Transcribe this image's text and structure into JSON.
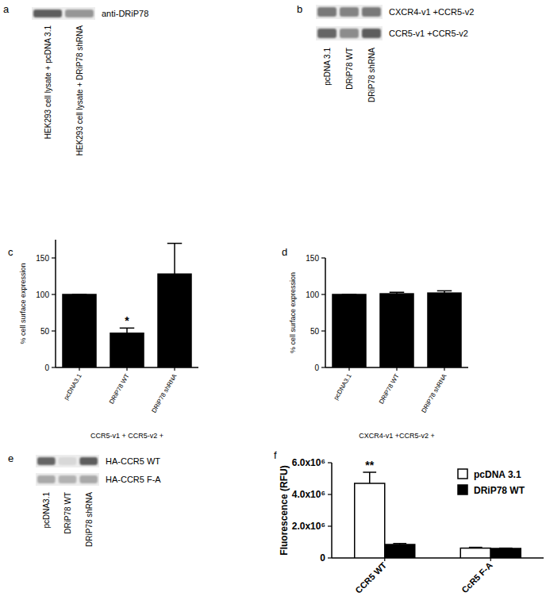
{
  "chart_data": [
    {
      "type": "bar",
      "panel": "c",
      "y_label": "% cell surface expression",
      "x_label": "CCR5-v1 + CCR5-v2 +",
      "categories": [
        "pcDNA3.1",
        "DRiP78 WT",
        "DRiP78 shRNA"
      ],
      "values": [
        100,
        47,
        128
      ],
      "errors": [
        0,
        7,
        42
      ],
      "color": "#000000",
      "ylim": [
        0,
        175
      ],
      "yticks": [
        0,
        50,
        100,
        150
      ],
      "grid": false,
      "annotations": [
        {
          "text": "*",
          "category": "DRiP78 WT"
        }
      ]
    },
    {
      "type": "bar",
      "panel": "d",
      "y_label": "% cell surface expression",
      "x_label": "CXCR4-v1 +CCR5-v2 +",
      "categories": [
        "pcDNA3.1",
        "DRiP78 WT",
        "DRiP78 shRNA"
      ],
      "values": [
        100,
        101,
        102
      ],
      "errors": [
        0,
        2,
        3
      ],
      "color": "#000000",
      "ylim": [
        0,
        150
      ],
      "yticks": [
        0,
        50,
        100,
        150
      ],
      "grid": false
    },
    {
      "type": "bar",
      "panel": "f",
      "y_label": "Fluorescence (RFU)",
      "categories": [
        "CCR5 WT",
        "CcR5 F-A"
      ],
      "series": [
        {
          "name": "pcDNA 3.1",
          "color": "#ffffff",
          "values": [
            4700000,
            620000
          ],
          "errors": [
            700000,
            50000
          ]
        },
        {
          "name": "DRiP78 WT",
          "color": "#000000",
          "values": [
            850000,
            600000
          ],
          "errors": [
            60000,
            20000
          ]
        }
      ],
      "ylim": [
        0,
        6000000
      ],
      "yticks": [
        0,
        {
          "value": 2000000,
          "label": "2.0x10⁶"
        },
        {
          "value": 4000000,
          "label": "4.0x10⁶"
        },
        {
          "value": 6000000,
          "label": "6.0x10⁶"
        }
      ],
      "grid": false,
      "legend": "upper right",
      "annotations": [
        {
          "text": "**",
          "category": "CCR5 WT"
        }
      ]
    }
  ],
  "blots": [
    {
      "panel": "a",
      "lanes": [
        "HEK293 cell lysate + pcDNA 3.1",
        "HEK293 cell lysate + DRiP78 shRNA"
      ],
      "rows": [
        {
          "label": "anti-DRiP78",
          "intensities": [
            0.75,
            0.45
          ]
        }
      ]
    },
    {
      "panel": "b",
      "lanes": [
        "pcDNA 3.1",
        "DRiP78 WT",
        "DRiP78 shRNA"
      ],
      "rows": [
        {
          "label": "CXCR4-v1 +CCR5-v2",
          "intensities": [
            0.6,
            0.55,
            0.6
          ]
        },
        {
          "label": "CCR5-v1 +CCR5-v2",
          "intensities": [
            0.7,
            0.5,
            0.75
          ]
        }
      ]
    },
    {
      "panel": "e",
      "lanes": [
        "pcDNA3.1",
        "DRiP78 WT",
        "DRiP78 shRNA"
      ],
      "rows": [
        {
          "label": "HA-CCR5 WT",
          "intensities": [
            0.7,
            0.1,
            0.75
          ]
        },
        {
          "label": "HA-CCR5 F-A",
          "intensities": [
            0.35,
            0.3,
            0.35
          ]
        }
      ]
    }
  ]
}
